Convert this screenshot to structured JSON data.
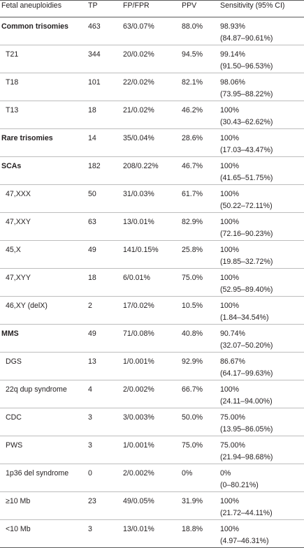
{
  "table": {
    "headers": [
      "Fetal aneuploidies",
      "TP",
      "FP/FPR",
      "PPV",
      "Sensitivity (95% CI)"
    ],
    "rows": [
      {
        "label": "Common trisomies",
        "group": true,
        "tp": "463",
        "fp_fpr": "63/0.07%",
        "ppv": "88.0%",
        "sens": "98.93%",
        "ci": "(84.87–90.61%)"
      },
      {
        "label": "T21",
        "group": false,
        "tp": "344",
        "fp_fpr": "20/0.02%",
        "ppv": "94.5%",
        "sens": "99.14%",
        "ci": "(91.50–96.53%)"
      },
      {
        "label": "T18",
        "group": false,
        "tp": "101",
        "fp_fpr": "22/0.02%",
        "ppv": "82.1%",
        "sens": "98.06%",
        "ci": "(73.95–88.22%)"
      },
      {
        "label": "T13",
        "group": false,
        "tp": "18",
        "fp_fpr": "21/0.02%",
        "ppv": "46.2%",
        "sens": "100%",
        "ci": "(30.43–62.62%)"
      },
      {
        "label": "Rare trisomies",
        "group": true,
        "tp": "14",
        "fp_fpr": "35/0.04%",
        "ppv": "28.6%",
        "sens": "100%",
        "ci": "(17.03–43.47%)"
      },
      {
        "label": "SCAs",
        "group": true,
        "tp": "182",
        "fp_fpr": "208/0.22%",
        "ppv": "46.7%",
        "sens": "100%",
        "ci": "(41.65–51.75%)"
      },
      {
        "label": "47,XXX",
        "group": false,
        "tp": "50",
        "fp_fpr": "31/0.03%",
        "ppv": "61.7%",
        "sens": "100%",
        "ci": "(50.22–72.11%)"
      },
      {
        "label": "47,XXY",
        "group": false,
        "tp": "63",
        "fp_fpr": "13/0.01%",
        "ppv": "82.9%",
        "sens": "100%",
        "ci": "(72.16–90.23%)"
      },
      {
        "label": "45,X",
        "group": false,
        "tp": "49",
        "fp_fpr": "141/0.15%",
        "ppv": "25.8%",
        "sens": "100%",
        "ci": "(19.85–32.72%)"
      },
      {
        "label": "47,XYY",
        "group": false,
        "tp": "18",
        "fp_fpr": "6/0.01%",
        "ppv": "75.0%",
        "sens": "100%",
        "ci": "(52.95–89.40%)"
      },
      {
        "label": "46,XY (delX)",
        "group": false,
        "tp": "2",
        "fp_fpr": "17/0.02%",
        "ppv": "10.5%",
        "sens": "100%",
        "ci": "(1.84–34.54%)"
      },
      {
        "label": "MMS",
        "group": true,
        "tp": "49",
        "fp_fpr": "71/0.08%",
        "ppv": "40.8%",
        "sens": "90.74%",
        "ci": "(32.07–50.20%)"
      },
      {
        "label": "DGS",
        "group": false,
        "tp": "13",
        "fp_fpr": "1/0.001%",
        "ppv": "92.9%",
        "sens": "86.67%",
        "ci": "(64.17–99.63%)"
      },
      {
        "label": "22q dup syndrome",
        "group": false,
        "tp": "4",
        "fp_fpr": "2/0.002%",
        "ppv": "66.7%",
        "sens": "100%",
        "ci": "(24.11–94.00%)"
      },
      {
        "label": "CDC",
        "group": false,
        "tp": "3",
        "fp_fpr": "3/0.003%",
        "ppv": "50.0%",
        "sens": "75.00%",
        "ci": "(13.95–86.05%)"
      },
      {
        "label": "PWS",
        "group": false,
        "tp": "3",
        "fp_fpr": "1/0.001%",
        "ppv": "75.0%",
        "sens": "75.00%",
        "ci": "(21.94–98.68%)"
      },
      {
        "label": "1p36 del syndrome",
        "group": false,
        "tp": "0",
        "fp_fpr": "2/0.002%",
        "ppv": "0%",
        "sens": "0%",
        "ci": "(0–80.21%)"
      },
      {
        "label": "≥10 Mb",
        "group": false,
        "tp": "23",
        "fp_fpr": "49/0.05%",
        "ppv": "31.9%",
        "sens": "100%",
        "ci": "(21.72–44.11%)"
      },
      {
        "label": "<10 Mb",
        "group": false,
        "tp": "3",
        "fp_fpr": "13/0.01%",
        "ppv": "18.8%",
        "sens": "100%",
        "ci": "(4.97–46.31%)"
      }
    ]
  }
}
